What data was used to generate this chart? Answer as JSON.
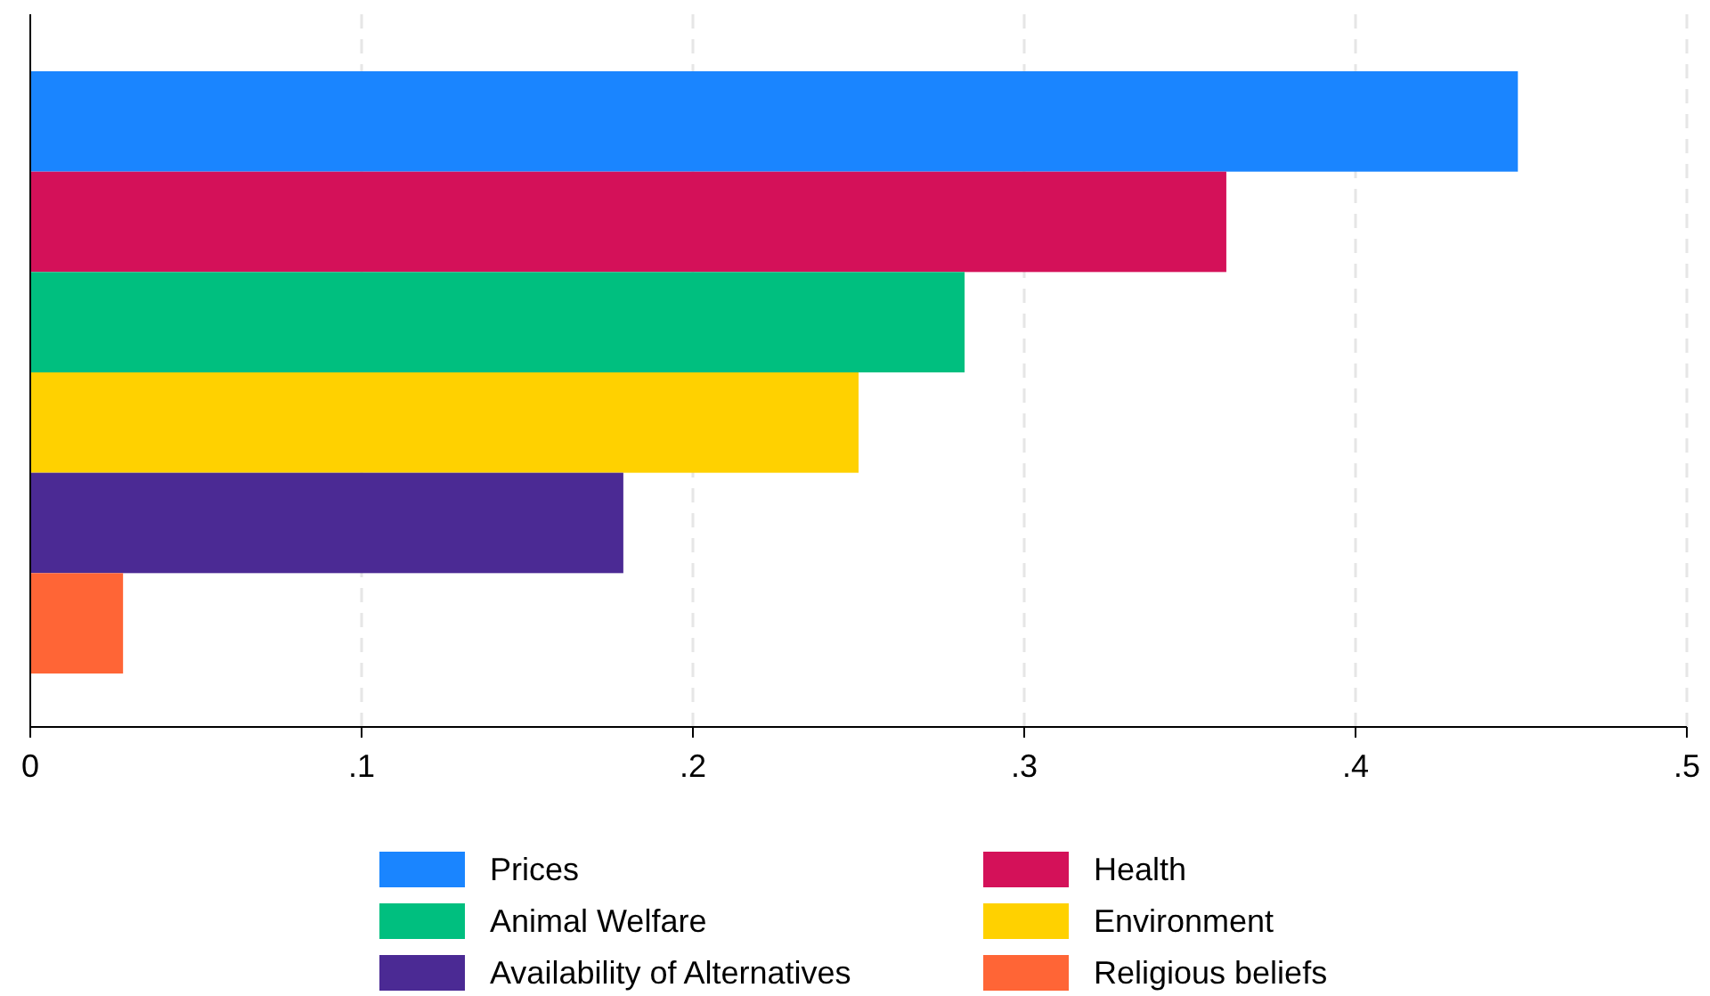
{
  "chart_data": {
    "type": "bar",
    "orientation": "horizontal",
    "categories": [
      null,
      null,
      null,
      null,
      null,
      null
    ],
    "series": [
      {
        "name": "Prices",
        "color": "#1a85ff",
        "values": [
          0.449,
          null,
          null,
          null,
          null,
          null
        ]
      },
      {
        "name": "Health",
        "color": "#d41159",
        "values": [
          null,
          0.361,
          null,
          null,
          null,
          null
        ]
      },
      {
        "name": "Animal Welfare",
        "color": "#00bf7f",
        "values": [
          null,
          null,
          0.282,
          null,
          null,
          null
        ]
      },
      {
        "name": "Environment",
        "color": "#ffd100",
        "values": [
          null,
          null,
          null,
          0.25,
          null,
          null
        ]
      },
      {
        "name": "Availability of Alternatives",
        "color": "#4b2a94",
        "values": [
          null,
          null,
          null,
          null,
          0.179,
          null
        ]
      },
      {
        "name": "Religious beliefs",
        "color": "#ff6536",
        "values": [
          null,
          null,
          null,
          null,
          null,
          0.028
        ]
      }
    ],
    "xlim": [
      0,
      0.5
    ],
    "xticks": [
      {
        "value": 0,
        "label": "0"
      },
      {
        "value": 0.1,
        "label": ".1"
      },
      {
        "value": 0.2,
        "label": ".2"
      },
      {
        "value": 0.3,
        "label": ".3"
      },
      {
        "value": 0.4,
        "label": ".4"
      },
      {
        "value": 0.5,
        "label": ".5"
      }
    ],
    "grid": "x",
    "legend": "bottom"
  }
}
